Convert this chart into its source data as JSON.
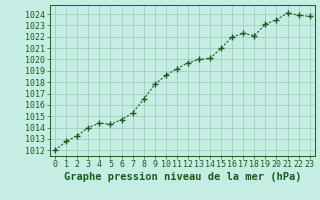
{
  "x": [
    0,
    1,
    2,
    3,
    4,
    5,
    6,
    7,
    8,
    9,
    10,
    11,
    12,
    13,
    14,
    15,
    16,
    17,
    18,
    19,
    20,
    21,
    22,
    23
  ],
  "y": [
    1012.0,
    1012.8,
    1013.3,
    1014.0,
    1014.4,
    1014.3,
    1014.7,
    1015.3,
    1016.5,
    1017.8,
    1018.6,
    1019.2,
    1019.7,
    1020.0,
    1020.1,
    1021.0,
    1022.0,
    1022.3,
    1022.1,
    1023.1,
    1023.5,
    1024.1,
    1023.9,
    1023.8
  ],
  "line_color": "#1a5c1a",
  "marker": "+",
  "bg_color": "#c5ede3",
  "grid_color": "#9ecfbf",
  "xlabel": "Graphe pression niveau de la mer (hPa)",
  "xlim": [
    -0.5,
    23.5
  ],
  "ylim": [
    1011.5,
    1024.8
  ],
  "yticks": [
    1012,
    1013,
    1014,
    1015,
    1016,
    1017,
    1018,
    1019,
    1020,
    1021,
    1022,
    1023,
    1024
  ],
  "xticks": [
    0,
    1,
    2,
    3,
    4,
    5,
    6,
    7,
    8,
    9,
    10,
    11,
    12,
    13,
    14,
    15,
    16,
    17,
    18,
    19,
    20,
    21,
    22,
    23
  ],
  "title_fontsize": 7.5,
  "tick_fontsize": 6,
  "line_width": 0.8,
  "marker_size": 4.5,
  "marker_edge_width": 1.0
}
